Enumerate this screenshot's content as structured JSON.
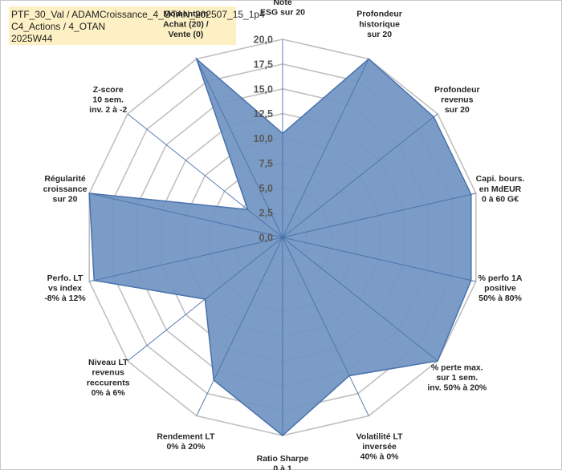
{
  "header": {
    "line1": "PTF_30_Val / ADAMCroissance_4_OTAN_202507_15_1p4",
    "line2": "C4_Actions / 4_OTAN",
    "line3": "2025W44"
  },
  "chart_data": {
    "type": "radar",
    "rmin": 0,
    "rmax": 20,
    "ticks": [
      "0,0",
      "2,5",
      "5,0",
      "7,5",
      "10,0",
      "12,5",
      "15,0",
      "17,5",
      "20,0"
    ],
    "tick_values": [
      0,
      2.5,
      5,
      7.5,
      10,
      12.5,
      15,
      17.5,
      20
    ],
    "grid": true,
    "legend": "none",
    "fill_color": "#7094c2",
    "line_color": "#4a72ad",
    "grid_color": "#c0c0c0",
    "spoke_color": "#4a72ad",
    "axes": [
      {
        "label": [
          "Note",
          "ESG sur 20"
        ],
        "value": 10.5
      },
      {
        "label": [
          "Profondeur",
          "historique",
          "sur 20"
        ],
        "value": 20
      },
      {
        "label": [
          "Profondeur",
          "revenus",
          "sur 20"
        ],
        "value": 19.5
      },
      {
        "label": [
          "Capi. bours.",
          "en MdEUR",
          "0 à 60 G€"
        ],
        "value": 19.5
      },
      {
        "label": [
          "% perfo 1A",
          "positive",
          "50% à 80%"
        ],
        "value": 19.5
      },
      {
        "label": [
          "% perte max.",
          "sur 1 sem.",
          "inv. 50% à 20%"
        ],
        "value": 20
      },
      {
        "label": [
          "Volatilité LT",
          "inversée",
          "40% à 0%"
        ],
        "value": 15.5
      },
      {
        "label": [
          "Ratio Sharpe",
          "0 à 1"
        ],
        "value": 20
      },
      {
        "label": [
          "Rendement LT",
          "0% à 20%"
        ],
        "value": 16
      },
      {
        "label": [
          "Niveau LT",
          "revenus",
          "reccurents",
          "0% à 6%"
        ],
        "value": 10
      },
      {
        "label": [
          "Perfo. LT",
          "vs index",
          "-8% à 12%"
        ],
        "value": 19.5
      },
      {
        "label": [
          "Régularité",
          "croissance",
          "sur 20"
        ],
        "value": 20
      },
      {
        "label": [
          "Z-score",
          "10 sem.",
          "inv. 2 à -2"
        ],
        "value": 4.5
      },
      {
        "label": [
          "Momentum",
          "Achat (20) /",
          "Vente (0)"
        ],
        "value": 20
      }
    ]
  }
}
